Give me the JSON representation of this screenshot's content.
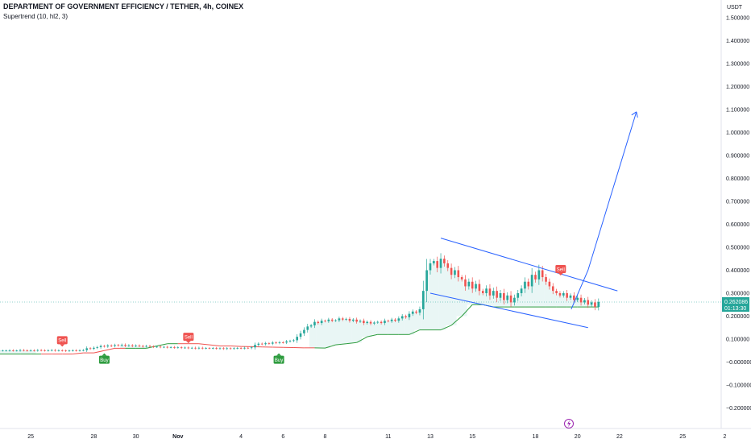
{
  "header": {
    "title": "DEPARTMENT OF GOVERNMENT EFFICIENCY / TETHER, 4h, COINEX",
    "indicator": "Supertrend (10, hl2, 3)"
  },
  "price_axis": {
    "unit_label": "USDT",
    "last_price_label": "0.262086",
    "countdown_label": "01:13:30"
  },
  "colors": {
    "up": "#26a69a",
    "down": "#ef5350",
    "supertrend_up": "#2e9c3f",
    "supertrend_down": "#ef5350",
    "drawing": "#2962ff",
    "buy_badge": "#2e9c3f",
    "sell_badge": "#ef5350",
    "lightning_icon": "#9c27b0"
  },
  "chart_data": {
    "type": "candlestick",
    "y_axis": {
      "ticks": [
        1.5,
        1.4,
        1.3,
        1.2,
        1.1,
        1.0,
        0.9,
        0.8,
        0.7,
        0.6,
        0.5,
        0.4,
        0.3,
        0.2,
        0.1,
        -0.0,
        -0.1,
        -0.2
      ],
      "tick_labels": [
        "1.500000",
        "1.400000",
        "1.300000",
        "1.200000",
        "1.100000",
        "1.000000",
        "0.900000",
        "0.800000",
        "0.700000",
        "0.600000",
        "0.500000",
        "0.400000",
        "0.300000",
        "0.200000",
        "0.100000",
        "−0.000000",
        "−0.100000",
        "−0.200000"
      ]
    },
    "x_axis": {
      "tick_labels": [
        "25",
        "28",
        "30",
        "Nov",
        "4",
        "6",
        "8",
        "11",
        "13",
        "15",
        "18",
        "20",
        "22",
        "25",
        "2"
      ],
      "tick_days": [
        -6,
        -3,
        -1,
        1,
        4,
        6,
        8,
        11,
        13,
        15,
        18,
        20,
        22,
        25,
        27
      ]
    },
    "candles_per_day": 6,
    "first_candle_day": -7.5,
    "closes": [
      0.05,
      0.05,
      0.05,
      0.051,
      0.05,
      0.05,
      0.052,
      0.051,
      0.05,
      0.051,
      0.05,
      0.052,
      0.051,
      0.05,
      0.051,
      0.052,
      0.05,
      0.051,
      0.05,
      0.049,
      0.05,
      0.051,
      0.05,
      0.051,
      0.052,
      0.06,
      0.058,
      0.062,
      0.065,
      0.07,
      0.068,
      0.072,
      0.07,
      0.074,
      0.072,
      0.075,
      0.071,
      0.073,
      0.07,
      0.072,
      0.07,
      0.068,
      0.07,
      0.068,
      0.066,
      0.067,
      0.065,
      0.066,
      0.064,
      0.065,
      0.063,
      0.064,
      0.062,
      0.063,
      0.061,
      0.062,
      0.06,
      0.062,
      0.06,
      0.061,
      0.06,
      0.061,
      0.059,
      0.06,
      0.058,
      0.06,
      0.059,
      0.06,
      0.061,
      0.06,
      0.062,
      0.061,
      0.064,
      0.075,
      0.08,
      0.078,
      0.082,
      0.08,
      0.085,
      0.083,
      0.086,
      0.085,
      0.09,
      0.092,
      0.095,
      0.11,
      0.125,
      0.14,
      0.155,
      0.16,
      0.175,
      0.17,
      0.18,
      0.178,
      0.185,
      0.18,
      0.182,
      0.19,
      0.185,
      0.188,
      0.18,
      0.185,
      0.176,
      0.18,
      0.17,
      0.175,
      0.168,
      0.172,
      0.175,
      0.17,
      0.18,
      0.178,
      0.185,
      0.18,
      0.19,
      0.2,
      0.195,
      0.21,
      0.22,
      0.215,
      0.23,
      0.31,
      0.4,
      0.43,
      0.44,
      0.41,
      0.45,
      0.43,
      0.41,
      0.38,
      0.4,
      0.37,
      0.36,
      0.33,
      0.35,
      0.32,
      0.34,
      0.31,
      0.3,
      0.32,
      0.29,
      0.31,
      0.28,
      0.3,
      0.27,
      0.29,
      0.26,
      0.28,
      0.3,
      0.32,
      0.35,
      0.33,
      0.38,
      0.36,
      0.4,
      0.37,
      0.35,
      0.33,
      0.31,
      0.3,
      0.29,
      0.3,
      0.28,
      0.29,
      0.27,
      0.28,
      0.26,
      0.27,
      0.25,
      0.26,
      0.24,
      0.262
    ],
    "supertrend": {
      "start_day": -7.5,
      "points_per_day": 2,
      "values": [
        0.035,
        0.035,
        0.035,
        0.035,
        0.035,
        0.035,
        0.035,
        0.035,
        0.04,
        0.04,
        0.05,
        0.06,
        0.06,
        0.06,
        0.06,
        0.07,
        0.08,
        0.08,
        0.08,
        0.08,
        0.075,
        0.07,
        0.07,
        0.068,
        0.067,
        0.066,
        0.065,
        0.064,
        0.063,
        0.062,
        0.062,
        0.061,
        0.075,
        0.08,
        0.085,
        0.11,
        0.12,
        0.12,
        0.12,
        0.12,
        0.14,
        0.14,
        0.14,
        0.16,
        0.2,
        0.25,
        0.25,
        0.24,
        0.24,
        0.24,
        0.24,
        0.24,
        0.24,
        0.24,
        0.24,
        0.24,
        0.24,
        0.24
      ],
      "down_segments": [
        [
          4,
          12
        ],
        [
          17,
          30
        ]
      ]
    },
    "signals": [
      {
        "label": "Sell",
        "day": -4.5,
        "price": 0.06,
        "type": "sell"
      },
      {
        "label": "Buy",
        "day": -2.5,
        "price": 0.045,
        "type": "buy"
      },
      {
        "label": "Sell",
        "day": 1.5,
        "price": 0.075,
        "type": "sell"
      },
      {
        "label": "Buy",
        "day": 5.8,
        "price": 0.045,
        "type": "buy"
      },
      {
        "label": "Sell",
        "day": 19.2,
        "price": 0.37,
        "type": "sell"
      }
    ],
    "drawings": {
      "channel_upper": [
        [
          13.5,
          0.54
        ],
        [
          21.9,
          0.31
        ]
      ],
      "channel_lower": [
        [
          13.0,
          0.3
        ],
        [
          20.5,
          0.15
        ]
      ],
      "projection": [
        [
          19.7,
          0.23
        ],
        [
          20.5,
          0.4
        ],
        [
          22.8,
          1.09
        ]
      ]
    },
    "last_price": 0.262086
  }
}
